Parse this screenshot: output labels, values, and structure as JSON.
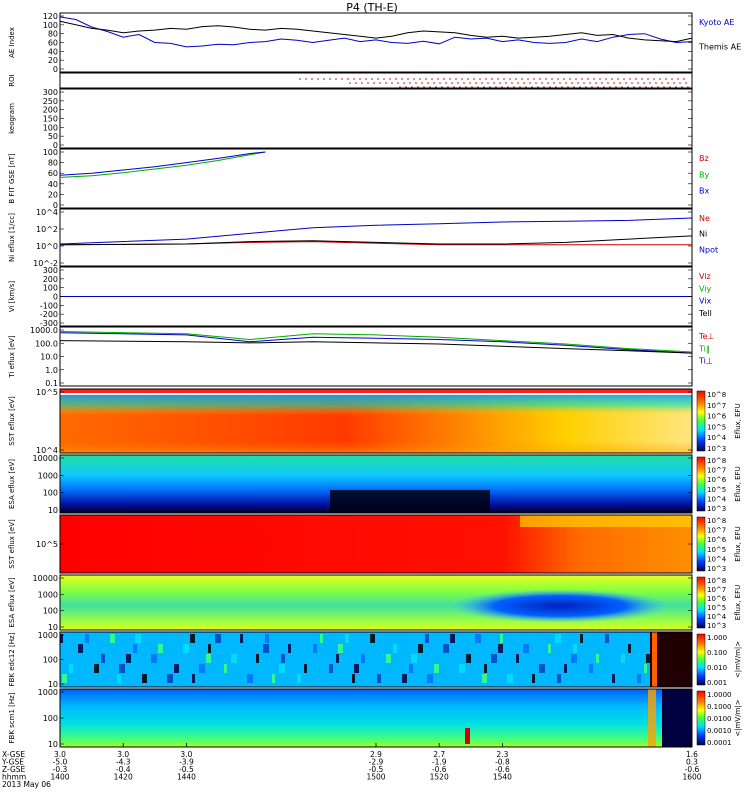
{
  "title": "P4 (TH-E)",
  "chart_data": [
    {
      "type": "line",
      "panel": "AE Index",
      "ylabel": "AE Index",
      "ylim": [
        0,
        120
      ],
      "yticks": [
        "120",
        "100",
        "80",
        "60",
        "40",
        "20",
        "0"
      ],
      "series": [
        {
          "name": "Kyoto AE",
          "color": "#0000cc",
          "x": [
            1400,
            1405,
            1410,
            1415,
            1420,
            1425,
            1430,
            1435,
            1440,
            1445,
            1450,
            1455,
            1460,
            1465,
            1470,
            1475,
            1480,
            1485,
            1490,
            1495,
            1500,
            1505,
            1510,
            1515,
            1520,
            1525,
            1530,
            1535,
            1540,
            1545,
            1550,
            1555,
            1560,
            1565,
            1570,
            1575,
            1580,
            1585,
            1590,
            1595,
            1600
          ],
          "values": [
            118,
            112,
            95,
            85,
            72,
            78,
            60,
            58,
            50,
            52,
            56,
            55,
            60,
            62,
            68,
            65,
            60,
            65,
            70,
            62,
            66,
            60,
            58,
            63,
            57,
            72,
            68,
            70,
            62,
            66,
            60,
            58,
            60,
            68,
            62,
            72,
            78,
            80,
            68,
            60,
            62
          ]
        },
        {
          "name": "Themis AE",
          "color": "#000000",
          "x": [
            1400,
            1405,
            1410,
            1415,
            1420,
            1425,
            1430,
            1435,
            1440,
            1445,
            1450,
            1455,
            1460,
            1465,
            1470,
            1475,
            1480,
            1485,
            1490,
            1495,
            1500,
            1505,
            1510,
            1515,
            1520,
            1525,
            1530,
            1535,
            1540,
            1545,
            1550,
            1555,
            1560,
            1565,
            1570,
            1575,
            1580,
            1585,
            1590,
            1595,
            1600
          ],
          "values": [
            108,
            100,
            92,
            88,
            82,
            86,
            88,
            92,
            90,
            96,
            98,
            95,
            90,
            88,
            92,
            90,
            86,
            82,
            78,
            74,
            70,
            74,
            82,
            86,
            84,
            82,
            76,
            72,
            74,
            70,
            72,
            74,
            78,
            82,
            76,
            78,
            70,
            66,
            64,
            62,
            70
          ]
        }
      ]
    },
    {
      "type": "scatter",
      "panel": "ROI",
      "ylabel": "ROI"
    },
    {
      "type": "heatmap",
      "panel": "Keogram",
      "ylabel": "keogram",
      "ylim": [
        0,
        300
      ],
      "yticks": [
        "300",
        "250",
        "200",
        "150",
        "100",
        "50",
        "0"
      ]
    },
    {
      "type": "line",
      "panel": "B FIT GSE",
      "ylabel": "B FIT GSE [nT]",
      "ylim": [
        0,
        100
      ],
      "yticks": [
        "100",
        "80",
        "60",
        "40",
        "20",
        "0"
      ],
      "series": [
        {
          "name": "Bz",
          "color": "#cc0000",
          "x": [],
          "values": []
        },
        {
          "name": "By",
          "color": "#00aa00",
          "x": [
            1400,
            1410,
            1420,
            1430,
            1440,
            1450,
            1460,
            1465
          ],
          "values": [
            52,
            55,
            61,
            68,
            75,
            84,
            95,
            100
          ]
        },
        {
          "name": "Bx",
          "color": "#0000cc",
          "x": [
            1400,
            1410,
            1420,
            1430,
            1440,
            1450,
            1460,
            1465
          ],
          "values": [
            56,
            60,
            66,
            72,
            80,
            88,
            97,
            100
          ]
        }
      ]
    },
    {
      "type": "line",
      "panel": "Ni",
      "ylabel": "Ni eflux [1/cc]",
      "yticks": [
        "10^4",
        "10^2",
        "10^0",
        "10^-2"
      ],
      "series": [
        {
          "name": "Ne",
          "color": "#cc0000",
          "x": [
            1400,
            1440,
            1460,
            1480,
            1500,
            1520,
            1540,
            1560,
            1580,
            1600
          ],
          "log10_values": [
            0.1,
            0.2,
            0.4,
            0.5,
            0.3,
            0.1,
            0.1,
            0.1,
            0.1,
            0.1
          ]
        },
        {
          "name": "Ni",
          "color": "#000000",
          "x": [
            1400,
            1440,
            1460,
            1480,
            1500,
            1520,
            1540,
            1560,
            1580,
            1600
          ],
          "log10_values": [
            0.1,
            0.2,
            0.5,
            0.6,
            0.4,
            0.2,
            0.2,
            0.4,
            0.8,
            1.2
          ]
        },
        {
          "name": "Npot",
          "color": "#0000cc",
          "x": [
            1400,
            1440,
            1460,
            1480,
            1500,
            1520,
            1540,
            1560,
            1580,
            1600
          ],
          "log10_values": [
            0.2,
            0.8,
            1.5,
            2.2,
            2.5,
            2.7,
            2.9,
            3.0,
            3.1,
            3.4
          ]
        }
      ]
    },
    {
      "type": "line",
      "panel": "Vi",
      "ylabel": "Vi [km/s]",
      "ylim": [
        -300,
        300
      ],
      "yticks": [
        "300",
        "200",
        "100",
        "0",
        "-100",
        "-200",
        "-300"
      ],
      "series": [
        {
          "name": "Viz",
          "color": "#cc0000",
          "x": [
            1400,
            1500,
            1600
          ],
          "values": [
            0,
            0,
            0
          ]
        },
        {
          "name": "Viy",
          "color": "#00aa00",
          "x": [
            1400,
            1500,
            1600
          ],
          "values": [
            0,
            0,
            0
          ]
        },
        {
          "name": "Vix",
          "color": "#0000cc",
          "x": [
            1400,
            1500,
            1600
          ],
          "values": [
            0,
            0,
            0
          ]
        },
        {
          "name": "Tell",
          "color": "#000000",
          "x": [],
          "values": []
        }
      ]
    },
    {
      "type": "line",
      "panel": "Ti",
      "ylabel": "Ti eflux [eV]",
      "yticks": [
        "1000.0",
        "100.0",
        "10.0",
        "1.0",
        "0.1"
      ],
      "series": [
        {
          "name": "Te⊥",
          "color": "#cc0000",
          "x": [],
          "log10_values": []
        },
        {
          "name": "Ti‖",
          "color": "#00aa00",
          "x": [
            1400,
            1440,
            1460,
            1480,
            1500,
            1520,
            1540,
            1560,
            1580,
            1600
          ],
          "log10_values": [
            3.3,
            3.1,
            2.6,
            3.1,
            3.0,
            2.8,
            2.5,
            2.2,
            1.8,
            1.5
          ]
        },
        {
          "name": "Ti⊥",
          "color": "#0000cc",
          "x": [
            1400,
            1440,
            1460,
            1480,
            1500,
            1520,
            1540,
            1560,
            1580,
            1600
          ],
          "log10_values": [
            3.2,
            3.0,
            2.4,
            2.8,
            2.7,
            2.6,
            2.4,
            2.1,
            1.7,
            1.4
          ]
        },
        {
          "name": "",
          "color": "#000000",
          "x": [
            1400,
            1440,
            1460,
            1480,
            1500,
            1520,
            1540,
            1560,
            1580,
            1600
          ],
          "log10_values": [
            2.5,
            2.4,
            2.3,
            2.4,
            2.3,
            2.2,
            2.0,
            1.8,
            1.6,
            1.4
          ]
        }
      ]
    },
    {
      "type": "heatmap",
      "panel": "SST eflux",
      "ylabel": "SST eflux [eV]",
      "yticks": [
        "10^5",
        "10^4"
      ],
      "colorbar": [
        "10^8",
        "10^7",
        "10^6",
        "10^5",
        "10^4",
        "10^3"
      ],
      "cblabel": "Eflux, EFU"
    },
    {
      "type": "heatmap",
      "panel": "ESA eflux",
      "ylabel": "ESA eflux [eV]",
      "yticks": [
        "10000",
        "1000",
        "100",
        "10"
      ],
      "colorbar": [
        "10^8",
        "10^7",
        "10^6",
        "10^5",
        "10^4",
        "10^3"
      ],
      "cblabel": "Eflux, EFU"
    },
    {
      "type": "heatmap",
      "panel": "SST eflux 2",
      "ylabel": "SST eflux [eV]",
      "yticks": [
        "10^5"
      ],
      "colorbar": [
        "10^8",
        "10^7",
        "10^6",
        "10^5",
        "10^4",
        "10^3"
      ],
      "cblabel": "Eflux, EFU"
    },
    {
      "type": "heatmap",
      "panel": "ESA eflux 2",
      "ylabel": "ESA eflux [eV]",
      "yticks": [
        "10000",
        "1000",
        "100",
        "10"
      ],
      "colorbar": [
        "10^8",
        "10^7",
        "10^6",
        "10^5",
        "10^4",
        "10^3"
      ],
      "cblabel": "Eflux, EFU"
    },
    {
      "type": "heatmap",
      "panel": "FBK edc12",
      "ylabel": "FBK edc12 [Hz]",
      "yticks": [
        "1000",
        "100",
        "10"
      ],
      "colorbar": [
        "1.000",
        "0.100",
        "0.010",
        "0.001"
      ],
      "cblabel": "<|mV/m|>"
    },
    {
      "type": "heatmap",
      "panel": "FBK scm1",
      "ylabel": "FBK scm1 [Hz]",
      "yticks": [
        "1000",
        "100",
        "10"
      ],
      "colorbar": [
        "1.0000",
        "0.1000",
        "0.0100",
        "0.0010",
        "0.0001"
      ],
      "cblabel": "<|mV/m|>"
    }
  ],
  "xaxis": {
    "row_labels": [
      "X-GSE",
      "Y-GSE",
      "Z-GSE",
      "hhmm",
      "2013 May 06"
    ],
    "ticks": [
      {
        "xgse": "3.0",
        "ygse": "-5.0",
        "zgse": "-0.3",
        "hhmm": "1400"
      },
      {
        "xgse": "3.0",
        "ygse": "-4.3",
        "zgse": "-0.4",
        "hhmm": "1420"
      },
      {
        "xgse": "3.0",
        "ygse": "-3.9",
        "zgse": "-0.5",
        "hhmm": "1440"
      },
      {
        "xgse": "2.9",
        "ygse": "-2.9",
        "zgse": "-0.5",
        "hhmm": "1500"
      },
      {
        "xgse": "2.7",
        "ygse": "-1.9",
        "zgse": "-0.6",
        "hhmm": "1520"
      },
      {
        "xgse": "2.3",
        "ygse": "-0.8",
        "zgse": "-0.6",
        "hhmm": "1540"
      },
      {
        "xgse": "1.6",
        "ygse": "0.3",
        "zgse": "-0.6",
        "hhmm": "1600"
      }
    ]
  }
}
